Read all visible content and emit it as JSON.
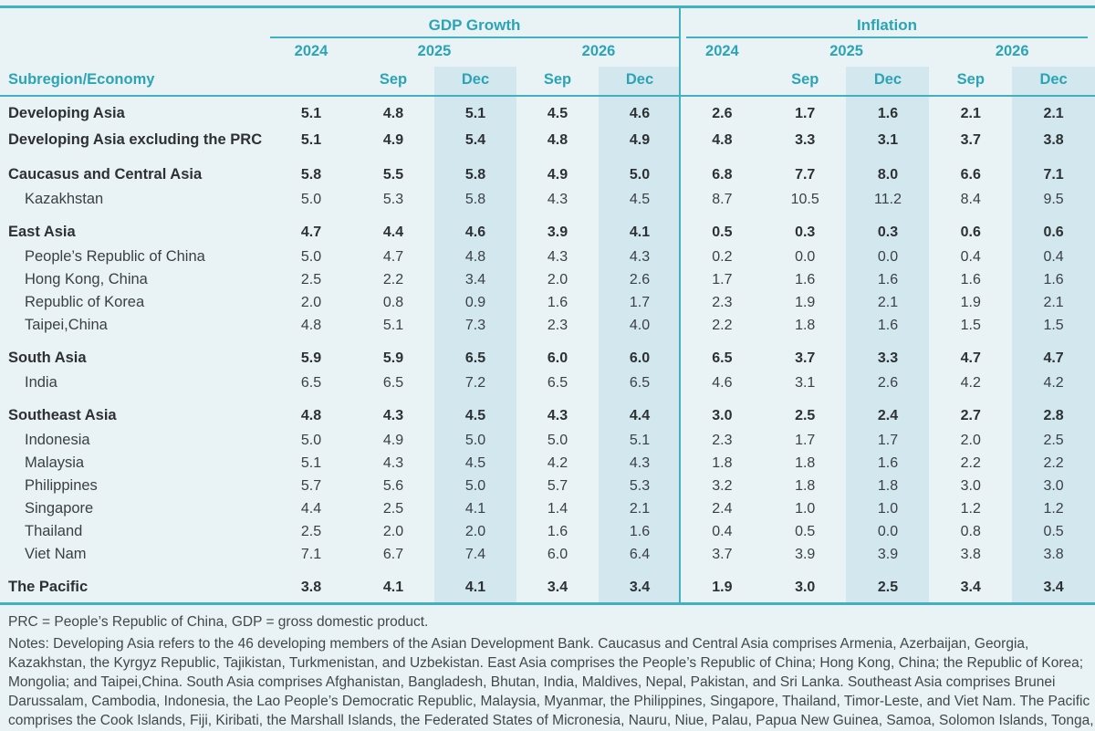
{
  "colors": {
    "background": "#e9f3f5",
    "dec_column_shading": "#d2e8ee",
    "teal_accent": "#2ba4b6",
    "rule_line": "#41b0c0",
    "text_dark": "#2d3134"
  },
  "header": {
    "economy_label": "Subregion/Economy",
    "gdp_label": "GDP Growth",
    "inflation_label": "Inflation",
    "gdp_years": [
      "2024",
      "2025",
      "2026"
    ],
    "inflation_years": [
      "2024",
      "2025",
      "2026"
    ],
    "gdp_months": [
      "Sep",
      "Dec",
      "Sep",
      "Dec"
    ],
    "inflation_months": [
      "Sep",
      "Dec",
      "Sep",
      "Dec"
    ]
  },
  "rows": [
    {
      "label": "Developing Asia",
      "level": "total",
      "gap": false,
      "gdp": [
        "5.1",
        "4.8",
        "5.1",
        "4.5",
        "4.6"
      ],
      "inflation": [
        "2.6",
        "1.7",
        "1.6",
        "2.1",
        "2.1"
      ]
    },
    {
      "label": "Developing Asia excluding the PRC",
      "level": "total",
      "gap": false,
      "gdp": [
        "5.1",
        "4.9",
        "5.4",
        "4.8",
        "4.9"
      ],
      "inflation": [
        "4.8",
        "3.3",
        "3.1",
        "3.7",
        "3.8"
      ]
    },
    {
      "label": "Caucasus and Central Asia",
      "level": "total",
      "gap": true,
      "gdp": [
        "5.8",
        "5.5",
        "5.8",
        "4.9",
        "5.0"
      ],
      "inflation": [
        "6.8",
        "7.7",
        "8.0",
        "6.6",
        "7.1"
      ]
    },
    {
      "label": "Kazakhstan",
      "level": "country",
      "gap": false,
      "gdp": [
        "5.0",
        "5.3",
        "5.8",
        "4.3",
        "4.5"
      ],
      "inflation": [
        "8.7",
        "10.5",
        "11.2",
        "8.4",
        "9.5"
      ]
    },
    {
      "label": "East Asia",
      "level": "total",
      "gap": true,
      "gdp": [
        "4.7",
        "4.4",
        "4.6",
        "3.9",
        "4.1"
      ],
      "inflation": [
        "0.5",
        "0.3",
        "0.3",
        "0.6",
        "0.6"
      ]
    },
    {
      "label": "People’s Republic of China",
      "level": "country",
      "gap": false,
      "gdp": [
        "5.0",
        "4.7",
        "4.8",
        "4.3",
        "4.3"
      ],
      "inflation": [
        "0.2",
        "0.0",
        "0.0",
        "0.4",
        "0.4"
      ]
    },
    {
      "label": "Hong Kong, China",
      "level": "country",
      "gap": false,
      "gdp": [
        "2.5",
        "2.2",
        "3.4",
        "2.0",
        "2.6"
      ],
      "inflation": [
        "1.7",
        "1.6",
        "1.6",
        "1.6",
        "1.6"
      ]
    },
    {
      "label": "Republic of Korea",
      "level": "country",
      "gap": false,
      "gdp": [
        "2.0",
        "0.8",
        "0.9",
        "1.6",
        "1.7"
      ],
      "inflation": [
        "2.3",
        "1.9",
        "2.1",
        "1.9",
        "2.1"
      ]
    },
    {
      "label": "Taipei,China",
      "level": "country",
      "gap": false,
      "gdp": [
        "4.8",
        "5.1",
        "7.3",
        "2.3",
        "4.0"
      ],
      "inflation": [
        "2.2",
        "1.8",
        "1.6",
        "1.5",
        "1.5"
      ]
    },
    {
      "label": "South Asia",
      "level": "total",
      "gap": true,
      "gdp": [
        "5.9",
        "5.9",
        "6.5",
        "6.0",
        "6.0"
      ],
      "inflation": [
        "6.5",
        "3.7",
        "3.3",
        "4.7",
        "4.7"
      ]
    },
    {
      "label": "India",
      "level": "country",
      "gap": false,
      "gdp": [
        "6.5",
        "6.5",
        "7.2",
        "6.5",
        "6.5"
      ],
      "inflation": [
        "4.6",
        "3.1",
        "2.6",
        "4.2",
        "4.2"
      ]
    },
    {
      "label": "Southeast Asia",
      "level": "total",
      "gap": true,
      "gdp": [
        "4.8",
        "4.3",
        "4.5",
        "4.3",
        "4.4"
      ],
      "inflation": [
        "3.0",
        "2.5",
        "2.4",
        "2.7",
        "2.8"
      ]
    },
    {
      "label": "Indonesia",
      "level": "country",
      "gap": false,
      "gdp": [
        "5.0",
        "4.9",
        "5.0",
        "5.0",
        "5.1"
      ],
      "inflation": [
        "2.3",
        "1.7",
        "1.7",
        "2.0",
        "2.5"
      ]
    },
    {
      "label": "Malaysia",
      "level": "country",
      "gap": false,
      "gdp": [
        "5.1",
        "4.3",
        "4.5",
        "4.2",
        "4.3"
      ],
      "inflation": [
        "1.8",
        "1.8",
        "1.6",
        "2.2",
        "2.2"
      ]
    },
    {
      "label": "Philippines",
      "level": "country",
      "gap": false,
      "gdp": [
        "5.7",
        "5.6",
        "5.0",
        "5.7",
        "5.3"
      ],
      "inflation": [
        "3.2",
        "1.8",
        "1.8",
        "3.0",
        "3.0"
      ]
    },
    {
      "label": "Singapore",
      "level": "country",
      "gap": false,
      "gdp": [
        "4.4",
        "2.5",
        "4.1",
        "1.4",
        "2.1"
      ],
      "inflation": [
        "2.4",
        "1.0",
        "1.0",
        "1.2",
        "1.2"
      ]
    },
    {
      "label": "Thailand",
      "level": "country",
      "gap": false,
      "gdp": [
        "2.5",
        "2.0",
        "2.0",
        "1.6",
        "1.6"
      ],
      "inflation": [
        "0.4",
        "0.5",
        "0.0",
        "0.8",
        "0.5"
      ]
    },
    {
      "label": "Viet Nam",
      "level": "country",
      "gap": false,
      "gdp": [
        "7.1",
        "6.7",
        "7.4",
        "6.0",
        "6.4"
      ],
      "inflation": [
        "3.7",
        "3.9",
        "3.9",
        "3.8",
        "3.8"
      ]
    },
    {
      "label": "The Pacific",
      "level": "total",
      "gap": true,
      "gdp": [
        "3.8",
        "4.1",
        "4.1",
        "3.4",
        "3.4"
      ],
      "inflation": [
        "1.9",
        "3.0",
        "2.5",
        "3.4",
        "3.4"
      ]
    }
  ],
  "notes": {
    "abbrev": "PRC = People’s Republic of China, GDP = gross domestic product.",
    "lines": [
      "Notes: Developing Asia refers to the 46 developing members of the Asian Development Bank. Caucasus and Central Asia comprises Armenia, Azerbaijan, Georgia,",
      "Kazakhstan, the Kyrgyz Republic, Tajikistan, Turkmenistan, and Uzbekistan. East Asia comprises the People’s Republic of China; Hong Kong, China; the Republic of Korea;",
      "Mongolia; and Taipei,China. South Asia comprises Afghanistan, Bangladesh, Bhutan, India, Maldives, Nepal, Pakistan, and Sri Lanka. Southeast Asia comprises Brunei",
      "Darussalam, Cambodia, Indonesia, the Lao People’s Democratic Republic, Malaysia, Myanmar, the Philippines, Singapore, Thailand, Timor-Leste, and Viet Nam. The Pacific",
      "comprises the Cook Islands, Fiji, Kiribati, the Marshall Islands, the Federated States of Micronesia, Nauru, Niue, Palau, Papua New Guinea, Samoa, Solomon Islands, Tonga,"
    ]
  }
}
